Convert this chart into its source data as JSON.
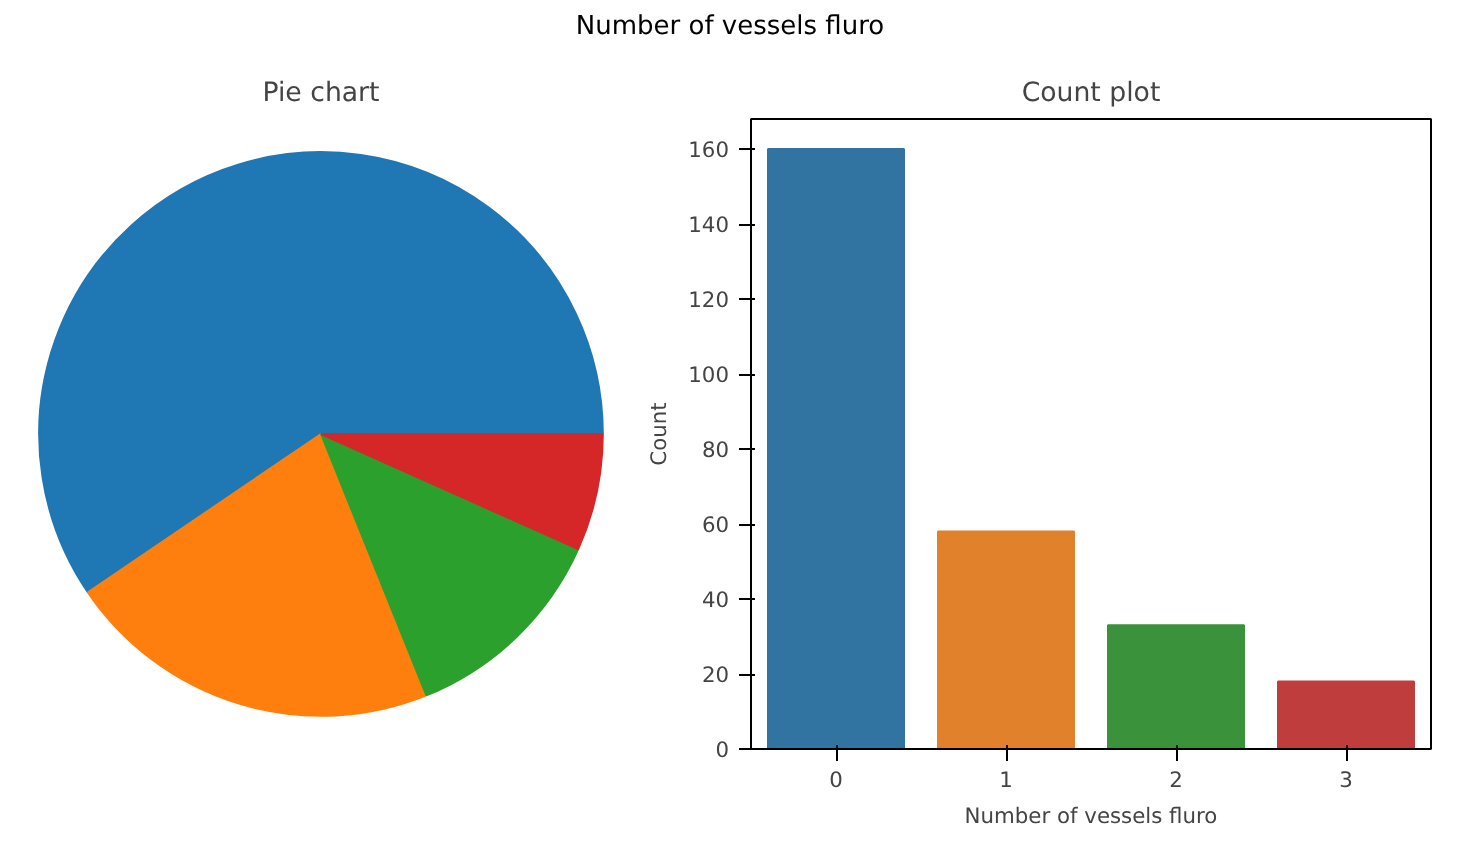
{
  "chart_data": [
    {
      "type": "pie",
      "title": "Pie chart",
      "annotations": [
        "Number of vessels fluro"
      ],
      "categories": [
        null,
        null,
        null,
        null
      ],
      "values": [
        59.5,
        21.6,
        12.2,
        6.7
      ],
      "colors": [
        "#1f77b4",
        "#ff7f0e",
        "#2ca02c",
        "#d62728"
      ]
    },
    {
      "type": "bar",
      "title": "Count plot",
      "xlabel": "Number of vessels fluro",
      "ylabel": "Count",
      "categories": [
        "0",
        "1",
        "2",
        "3"
      ],
      "values": [
        160,
        58,
        33,
        18
      ],
      "colors": [
        "#3274a1",
        "#e1812c",
        "#3a923a",
        "#c03d3e"
      ],
      "ylim": [
        0,
        168
      ],
      "yticks": [
        0,
        20,
        40,
        60,
        80,
        100,
        120,
        140,
        160
      ],
      "grid": false
    }
  ]
}
